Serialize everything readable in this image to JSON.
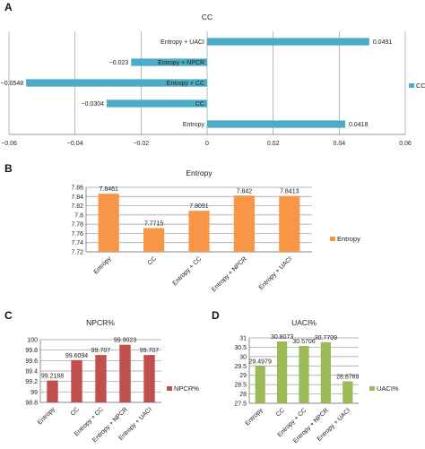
{
  "panels": {
    "A": "A",
    "B": "B",
    "C": "C",
    "D": "D"
  },
  "chart_data": [
    {
      "panel": "A",
      "type": "bar",
      "orientation": "horizontal",
      "title": "CC",
      "categories": [
        "Entropy",
        "CC",
        "Entropy + CC",
        "Entropy + NPCR",
        "Entropy + UACI"
      ],
      "values": [
        0.0418,
        -0.0304,
        -0.0548,
        -0.023,
        0.0491
      ],
      "data_labels": [
        "0.0418",
        "−0.0304",
        "−0.0548",
        "−0.023",
        "0.0491"
      ],
      "series": [
        {
          "name": "CC",
          "values": [
            0.0418,
            -0.0304,
            -0.0548,
            -0.023,
            0.0491
          ]
        }
      ],
      "xlim": [
        -0.06,
        0.06
      ],
      "xticks": [
        -0.06,
        -0.04,
        -0.02,
        0,
        0.02,
        0.04,
        0.06
      ],
      "xtick_labels": [
        "−0.06",
        "−0.04",
        "−0.02",
        "0",
        "0.02",
        "0.04",
        "0.06"
      ],
      "grid": "vertical",
      "legend": "right",
      "color": "#4bacc6"
    },
    {
      "panel": "B",
      "type": "bar",
      "title": "Entropy",
      "categories": [
        "Entropy",
        "CC",
        "Entropy + CC",
        "Entropy + NPCR",
        "Entropy + UACI"
      ],
      "values": [
        7.8461,
        7.7715,
        7.8091,
        7.842,
        7.8413
      ],
      "data_labels": [
        "7.8461",
        "7.7715",
        "7.8091",
        "7.842",
        "7.8413"
      ],
      "series": [
        {
          "name": "Entropy",
          "values": [
            7.8461,
            7.7715,
            7.8091,
            7.842,
            7.8413
          ]
        }
      ],
      "ylim": [
        7.72,
        7.86
      ],
      "yticks": [
        7.72,
        7.74,
        7.76,
        7.78,
        7.8,
        7.82,
        7.84,
        7.86
      ],
      "ytick_labels": [
        "7.72",
        "7.74",
        "7.76",
        "7.78",
        "7.8",
        "7.82",
        "7.84",
        "7.86"
      ],
      "grid": "horizontal",
      "legend": "right",
      "color": "#f79646"
    },
    {
      "panel": "C",
      "type": "bar",
      "title": "NPCR%",
      "categories": [
        "Entropy",
        "CC",
        "Entropy + CC",
        "Entropy + NPCR",
        "Entropy + UACI"
      ],
      "values": [
        99.2188,
        99.6094,
        99.707,
        99.9023,
        99.707
      ],
      "data_labels": [
        "99.2188",
        "99.6094",
        "99.707",
        "99.9023",
        "99.707"
      ],
      "series": [
        {
          "name": "NPCR%",
          "values": [
            99.2188,
            99.6094,
            99.707,
            99.9023,
            99.707
          ]
        }
      ],
      "ylim": [
        98.8,
        100
      ],
      "yticks": [
        98.8,
        99,
        99.2,
        99.4,
        99.6,
        99.8,
        100
      ],
      "ytick_labels": [
        "98.8",
        "99",
        "99.2",
        "99.4",
        "99.6",
        "99.8",
        "100"
      ],
      "grid": "horizontal",
      "legend": "right",
      "color": "#c0504d"
    },
    {
      "panel": "D",
      "type": "bar",
      "title": "UACI%",
      "categories": [
        "Entropy",
        "CC",
        "Entropy + CC",
        "Entropy + NPCR",
        "Entropy + UACI"
      ],
      "values": [
        29.4979,
        30.8073,
        30.5706,
        30.7709,
        28.6769
      ],
      "data_labels": [
        "29.4979",
        "30.8073",
        "30.5706",
        "30.7709",
        "28.6769"
      ],
      "series": [
        {
          "name": "UACI%",
          "values": [
            29.4979,
            30.8073,
            30.5706,
            30.7709,
            28.6769
          ]
        }
      ],
      "ylim": [
        27.5,
        31
      ],
      "yticks": [
        27.5,
        28,
        28.5,
        29,
        29.5,
        30,
        30.5,
        31
      ],
      "ytick_labels": [
        "27.5",
        "28",
        "28.5",
        "29",
        "29.5",
        "30",
        "30.5",
        "31"
      ],
      "grid": "horizontal",
      "legend": "right",
      "color": "#9bbb59"
    }
  ]
}
